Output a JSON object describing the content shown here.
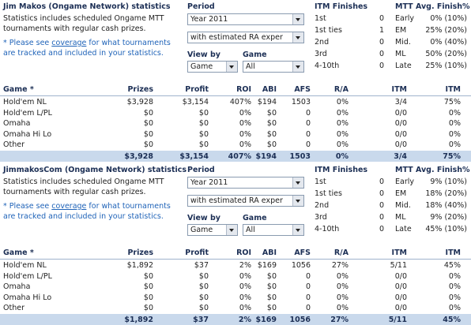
{
  "sections": [
    {
      "title": "Jim Makos (Ongame Network) statistics",
      "description": "Statistics includes scheduled Ongame MTT tournaments with regular cash prizes.",
      "note": {
        "before": "* Please see ",
        "link": "coverage",
        "after": " for what tournaments are tracked and included in your statistics."
      },
      "period": {
        "label": "Period",
        "year": "Year 2011",
        "mode": "with estimated RA exper"
      },
      "view_by": {
        "label": "View by",
        "value": "Game"
      },
      "game": {
        "label": "Game",
        "value": "All"
      },
      "itm_finishes": {
        "title": "ITM Finishes",
        "rows": [
          [
            "1st",
            0
          ],
          [
            "1st ties",
            1
          ],
          [
            "2nd",
            0
          ],
          [
            "3rd",
            0
          ],
          [
            "4-10th",
            0
          ]
        ]
      },
      "avg_finish": {
        "title": "MTT Avg. Finish%",
        "rows": [
          [
            "Early",
            "0% (10%)"
          ],
          [
            "EM",
            "25% (20%)"
          ],
          [
            "Mid.",
            "0% (40%)"
          ],
          [
            "ML",
            "50% (20%)"
          ],
          [
            "Late",
            "25% (10%)"
          ]
        ]
      },
      "table": {
        "header": [
          "Game *",
          "Prizes",
          "Profit",
          "ROI",
          "ABI",
          "AFS",
          "R/A",
          "ITM",
          "ITM"
        ],
        "rows": [
          [
            "Hold'em NL",
            "$3,928",
            "$3,154",
            "407%",
            "$194",
            1503,
            "0%",
            "3/4",
            "75%"
          ],
          [
            "Hold'em L/PL",
            "$0",
            "$0",
            "0%",
            "$0",
            0,
            "0%",
            "0/0",
            "0%"
          ],
          [
            "Omaha",
            "$0",
            "$0",
            "0%",
            "$0",
            0,
            "0%",
            "0/0",
            "0%"
          ],
          [
            "Omaha Hi Lo",
            "$0",
            "$0",
            "0%",
            "$0",
            0,
            "0%",
            "0/0",
            "0%"
          ],
          [
            "Other",
            "$0",
            "$0",
            "0%",
            "$0",
            0,
            "0%",
            "0/0",
            "0%"
          ]
        ],
        "total": [
          "$3,928",
          "$3,154",
          "407%",
          "$194",
          1503,
          "0%",
          "3/4",
          "75%"
        ]
      }
    },
    {
      "title": "JimmakosCom (Ongame Network) statistics",
      "description": "Statistics includes scheduled Ongame MTT tournaments with regular cash prizes.",
      "note": {
        "before": "* Please see ",
        "link": "coverage",
        "after": " for what tournaments are tracked and included in your statistics."
      },
      "period": {
        "label": "Period",
        "year": "Year 2011",
        "mode": "with estimated RA exper"
      },
      "view_by": {
        "label": "View by",
        "value": "Game"
      },
      "game": {
        "label": "Game",
        "value": "All"
      },
      "itm_finishes": {
        "title": "ITM Finishes",
        "rows": [
          [
            "1st",
            0
          ],
          [
            "1st ties",
            0
          ],
          [
            "2nd",
            0
          ],
          [
            "3rd",
            0
          ],
          [
            "4-10th",
            0
          ]
        ]
      },
      "avg_finish": {
        "title": "MTT Avg. Finish%",
        "rows": [
          [
            "Early",
            "9% (10%)"
          ],
          [
            "EM",
            "18% (20%)"
          ],
          [
            "Mid.",
            "18% (40%)"
          ],
          [
            "ML",
            "9% (20%)"
          ],
          [
            "Late",
            "45% (10%)"
          ]
        ]
      },
      "table": {
        "header": [
          "Game *",
          "Prizes",
          "Profit",
          "ROI",
          "ABI",
          "AFS",
          "R/A",
          "ITM",
          "ITM"
        ],
        "rows": [
          [
            "Hold'em NL",
            "$1,892",
            "$37",
            "2%",
            "$169",
            1056,
            "27%",
            "5/11",
            "45%"
          ],
          [
            "Hold'em L/PL",
            "$0",
            "$0",
            "0%",
            "$0",
            0,
            "0%",
            "0/0",
            "0%"
          ],
          [
            "Omaha",
            "$0",
            "$0",
            "0%",
            "$0",
            0,
            "0%",
            "0/0",
            "0%"
          ],
          [
            "Omaha Hi Lo",
            "$0",
            "$0",
            "0%",
            "$0",
            0,
            "0%",
            "0/0",
            "0%"
          ],
          [
            "Other",
            "$0",
            "$0",
            "0%",
            "$0",
            0,
            "0%",
            "0/0",
            "0%"
          ]
        ],
        "total": [
          "$1,892",
          "$37",
          "2%",
          "$169",
          1056,
          "27%",
          "5/11",
          "45%"
        ]
      }
    }
  ]
}
